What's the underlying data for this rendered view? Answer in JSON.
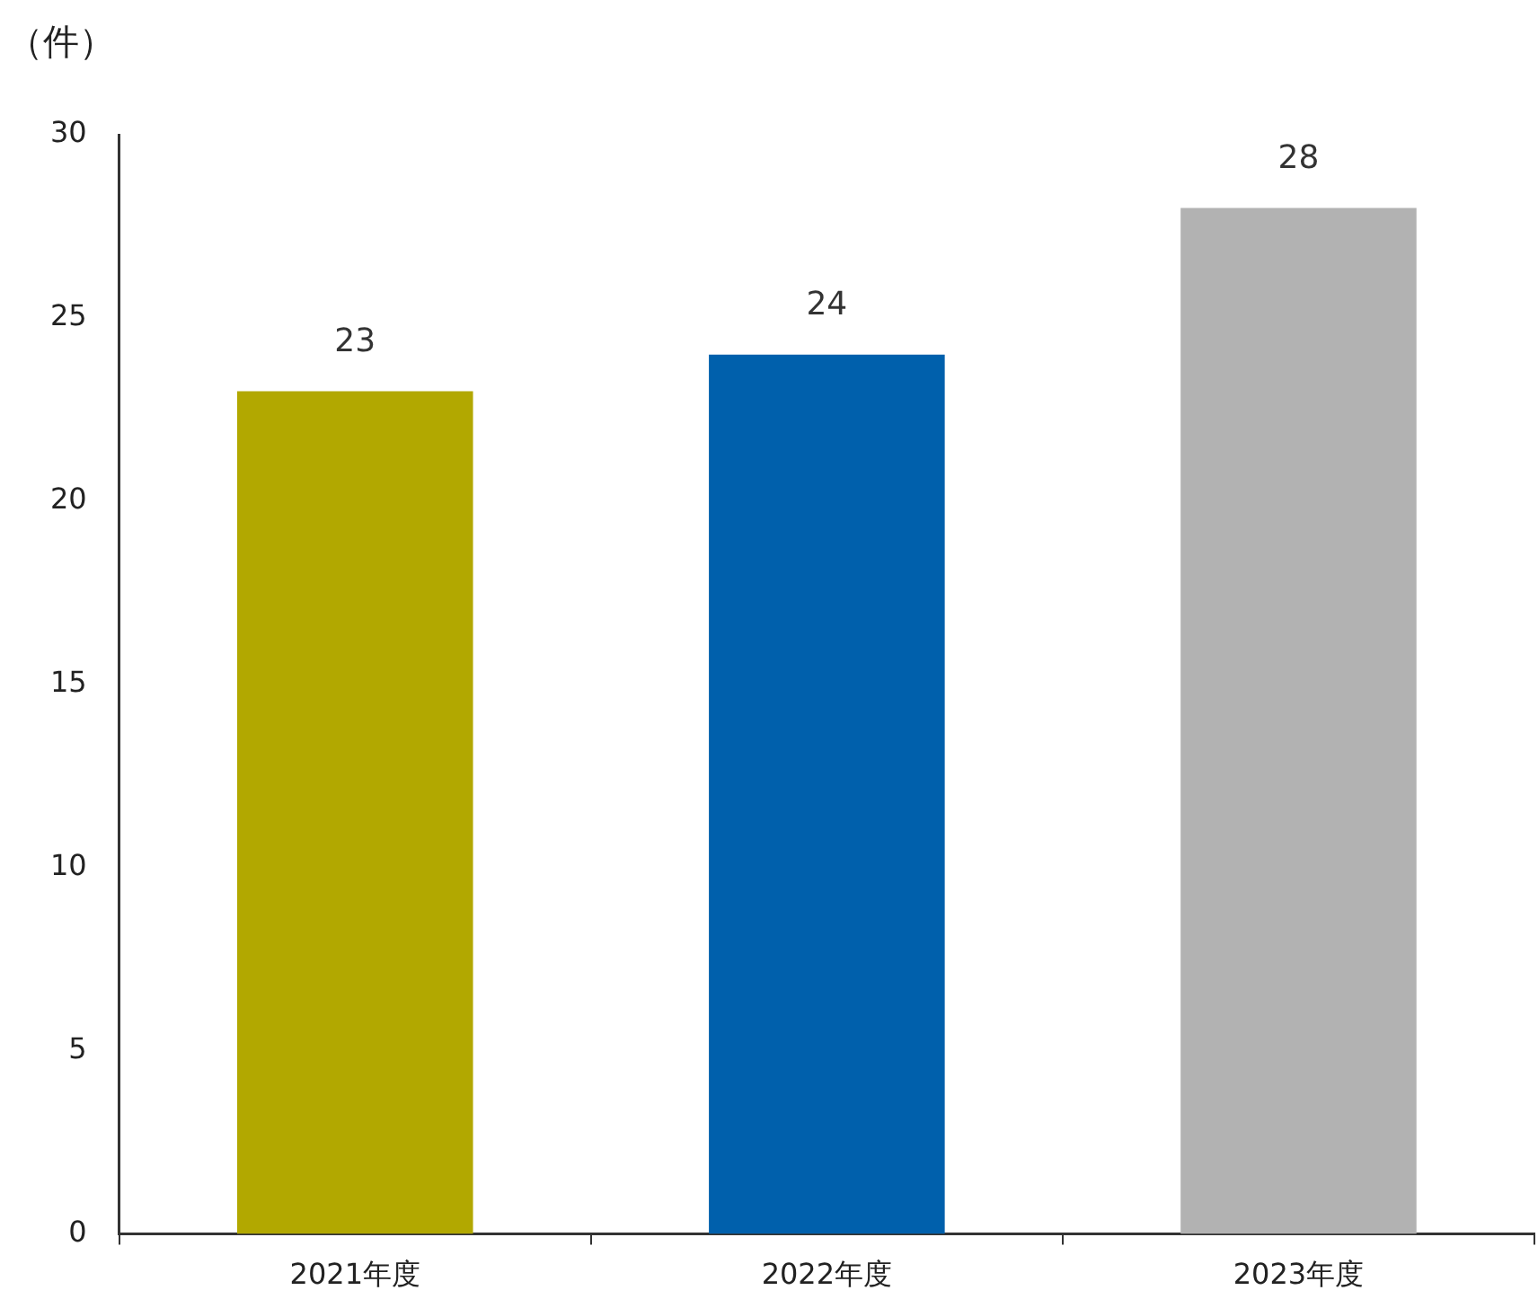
{
  "chart_data": {
    "type": "bar",
    "ylabel": "（件）",
    "categories": [
      "2021年度",
      "2022年度",
      "2023年度"
    ],
    "values": [
      23,
      24,
      28
    ],
    "colors": [
      "#b2a800",
      "#0060ac",
      "#b2b2b2"
    ],
    "ylim": [
      0,
      30
    ],
    "yticks": [
      0,
      5,
      10,
      15,
      20,
      25,
      30
    ],
    "data_labels": true
  }
}
